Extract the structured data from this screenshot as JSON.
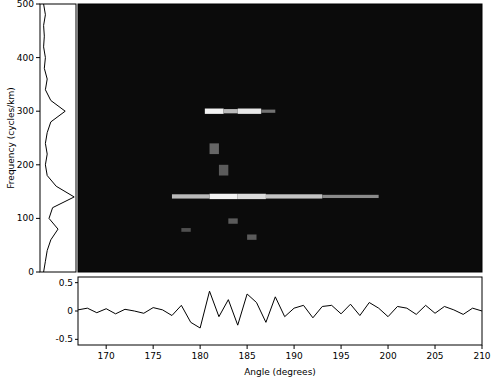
{
  "chart_data": [
    {
      "type": "heatmap",
      "xlim": [
        167,
        210
      ],
      "ylim": [
        0,
        500
      ],
      "tick_labels": false,
      "color_range": [
        0,
        1
      ],
      "cells": [
        {
          "x0": 180.5,
          "x1": 182.5,
          "y0": 295,
          "y1": 305,
          "value": 0.95
        },
        {
          "x0": 182.5,
          "x1": 184,
          "y0": 296,
          "y1": 304,
          "value": 0.7
        },
        {
          "x0": 184,
          "x1": 186.5,
          "y0": 295,
          "y1": 305,
          "value": 0.9
        },
        {
          "x0": 186.5,
          "x1": 188,
          "y0": 297,
          "y1": 303,
          "value": 0.4
        },
        {
          "x0": 177,
          "x1": 181,
          "y0": 137,
          "y1": 145,
          "value": 0.7
        },
        {
          "x0": 181,
          "x1": 184,
          "y0": 136,
          "y1": 146,
          "value": 0.95
        },
        {
          "x0": 184,
          "x1": 187,
          "y0": 136,
          "y1": 146,
          "value": 0.85
        },
        {
          "x0": 187,
          "x1": 193,
          "y0": 137,
          "y1": 145,
          "value": 0.75
        },
        {
          "x0": 193,
          "x1": 199,
          "y0": 138,
          "y1": 144,
          "value": 0.5
        },
        {
          "x0": 181,
          "x1": 182,
          "y0": 220,
          "y1": 240,
          "value": 0.35
        },
        {
          "x0": 182,
          "x1": 183,
          "y0": 180,
          "y1": 200,
          "value": 0.3
        },
        {
          "x0": 185,
          "x1": 186,
          "y0": 60,
          "y1": 70,
          "value": 0.3
        },
        {
          "x0": 183,
          "x1": 184,
          "y0": 90,
          "y1": 100,
          "value": 0.3
        },
        {
          "x0": 178,
          "x1": 179,
          "y0": 75,
          "y1": 82,
          "value": 0.25
        }
      ]
    },
    {
      "type": "line",
      "orientation": "horizontal",
      "xlabel": "Frequency (cycles/km)",
      "xlim": [
        0,
        500
      ],
      "xticks": [
        0,
        100,
        200,
        300,
        400,
        500
      ],
      "ylim": [
        0,
        1
      ],
      "tick_labels": "x",
      "color": "#000000",
      "x": [
        0,
        20,
        40,
        60,
        80,
        100,
        120,
        140,
        160,
        180,
        200,
        220,
        240,
        260,
        280,
        300,
        320,
        340,
        360,
        380,
        400,
        420,
        440,
        460,
        480,
        500
      ],
      "values": [
        0.1,
        0.15,
        0.2,
        0.3,
        0.5,
        0.25,
        0.35,
        0.95,
        0.45,
        0.2,
        0.15,
        0.2,
        0.15,
        0.2,
        0.3,
        0.7,
        0.3,
        0.15,
        0.2,
        0.12,
        0.15,
        0.1,
        0.12,
        0.1,
        0.15,
        0.1
      ]
    },
    {
      "type": "line",
      "xlabel": "Angle (degrees)",
      "xlim": [
        167,
        210
      ],
      "xticks": [
        170,
        175,
        180,
        185,
        190,
        195,
        200,
        205,
        210
      ],
      "ylim": [
        -0.6,
        0.6
      ],
      "yticks": [
        -0.5,
        0,
        0.5
      ],
      "color": "#000000",
      "x": [
        167,
        168,
        169,
        170,
        171,
        172,
        173,
        174,
        175,
        176,
        177,
        178,
        179,
        180,
        181,
        182,
        183,
        184,
        185,
        186,
        187,
        188,
        189,
        190,
        191,
        192,
        193,
        194,
        195,
        196,
        197,
        198,
        199,
        200,
        201,
        202,
        203,
        204,
        205,
        206,
        207,
        208,
        209,
        210
      ],
      "values": [
        0.02,
        0.05,
        -0.03,
        0.04,
        -0.05,
        0.03,
        0.0,
        -0.04,
        0.06,
        0.02,
        -0.08,
        0.1,
        -0.2,
        -0.3,
        0.35,
        -0.1,
        0.2,
        -0.25,
        0.3,
        0.15,
        -0.2,
        0.25,
        -0.1,
        0.05,
        0.1,
        -0.12,
        0.08,
        0.1,
        -0.05,
        0.12,
        -0.08,
        0.15,
        0.05,
        -0.1,
        0.08,
        0.05,
        -0.06,
        0.1,
        -0.04,
        0.08,
        0.02,
        -0.06,
        0.05,
        0.0
      ]
    }
  ]
}
